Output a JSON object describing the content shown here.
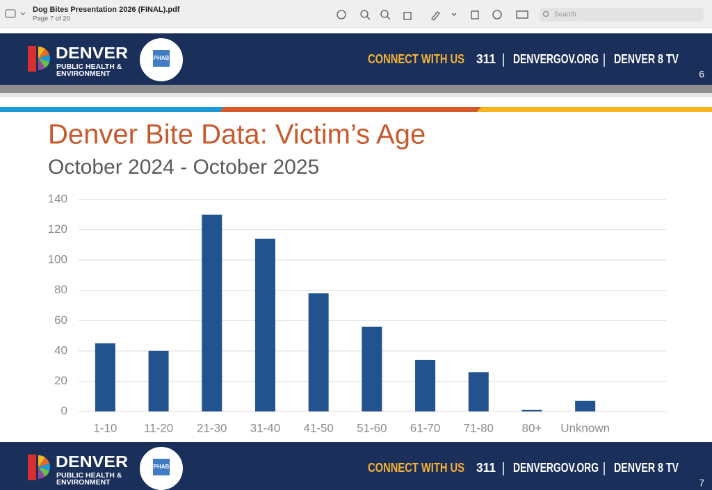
{
  "window": {
    "title": "Dog Bites Presentation 2026 (FINAL).pdf",
    "subtitle": "Page 7 of 20",
    "search_placeholder": "Search"
  },
  "banners": [
    {
      "org": "DENVER",
      "org_line2": "PUBLIC HEALTH &",
      "org_line3": "ENVIRONMENT",
      "seal": "PHAB",
      "connect": "CONNECT WITH US",
      "links": [
        "311",
        "DENVERGOV.ORG",
        "DENVER 8 TV"
      ],
      "page_number": "6"
    },
    {
      "org": "DENVER",
      "org_line2": "PUBLIC HEALTH &",
      "org_line3": "ENVIRONMENT",
      "seal": "PHAB",
      "connect": "CONNECT WITH US",
      "links": [
        "311",
        "DENVERGOV.ORG",
        "DENVER 8 TV"
      ],
      "page_number": "7"
    }
  ],
  "chart_data": {
    "type": "bar",
    "title": "Denver Bite Data: Victim’s Age",
    "subtitle": "October 2024 - October 2025",
    "categories": [
      "1-10",
      "11-20",
      "21-30",
      "31-40",
      "41-50",
      "51-60",
      "61-70",
      "71-80",
      "80+",
      "Unknown"
    ],
    "values": [
      45,
      40,
      130,
      114,
      78,
      56,
      34,
      26,
      1,
      7
    ],
    "color": "#23538f",
    "ylim": [
      0,
      140
    ],
    "yticks": [
      0,
      20,
      40,
      60,
      80,
      100,
      120,
      140
    ],
    "grid": true
  }
}
